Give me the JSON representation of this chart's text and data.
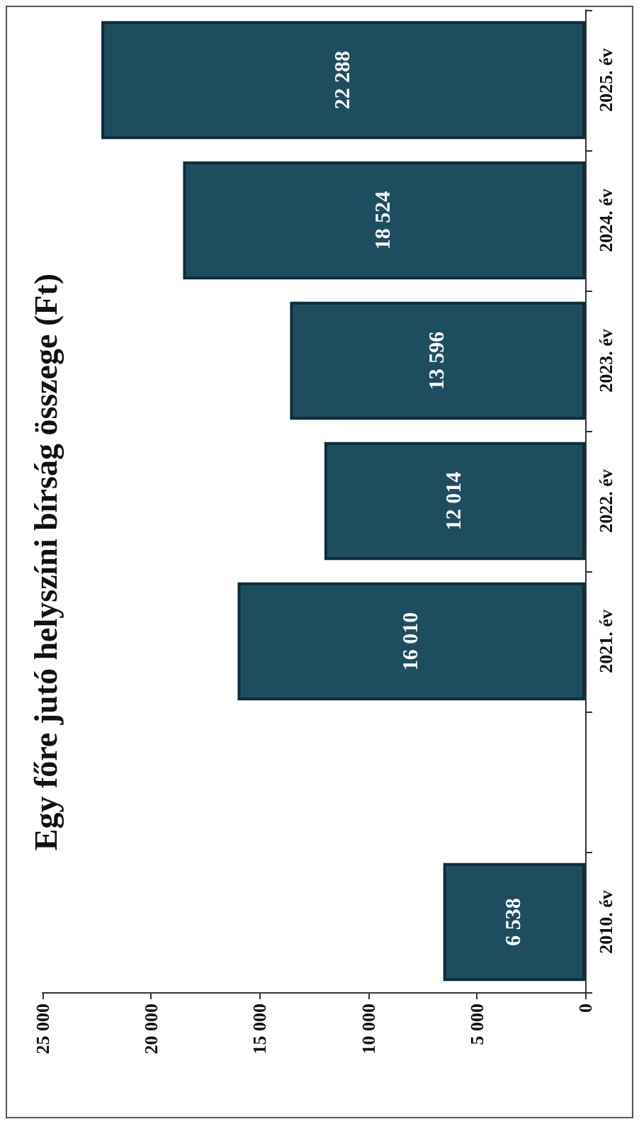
{
  "chart_data": {
    "type": "bar",
    "title": "Egy főre jutó helyszíni bírság összege (Ft)",
    "orientation": "horizontal",
    "categories": [
      "2025. év",
      "2024. év",
      "2023. év",
      "2022. év",
      "2021. év",
      null,
      "2010. év"
    ],
    "values": [
      22288,
      18524,
      13596,
      12014,
      16010,
      null,
      6538
    ],
    "color": "#1f4d60",
    "xlim": [
      25000,
      0
    ],
    "xticks": [
      {
        "value": 0,
        "label": "0"
      },
      {
        "value": 5000,
        "label": "5 000"
      },
      {
        "value": 10000,
        "label": "10 000"
      },
      {
        "value": 15000,
        "label": "15 000"
      },
      {
        "value": 20000,
        "label": "20 000"
      },
      {
        "value": 25000,
        "label": "25 000"
      }
    ],
    "value_labels": [
      "22 288",
      "18 524",
      "13 596",
      "12 014",
      "16 010",
      null,
      "6 538"
    ],
    "grid": false
  }
}
